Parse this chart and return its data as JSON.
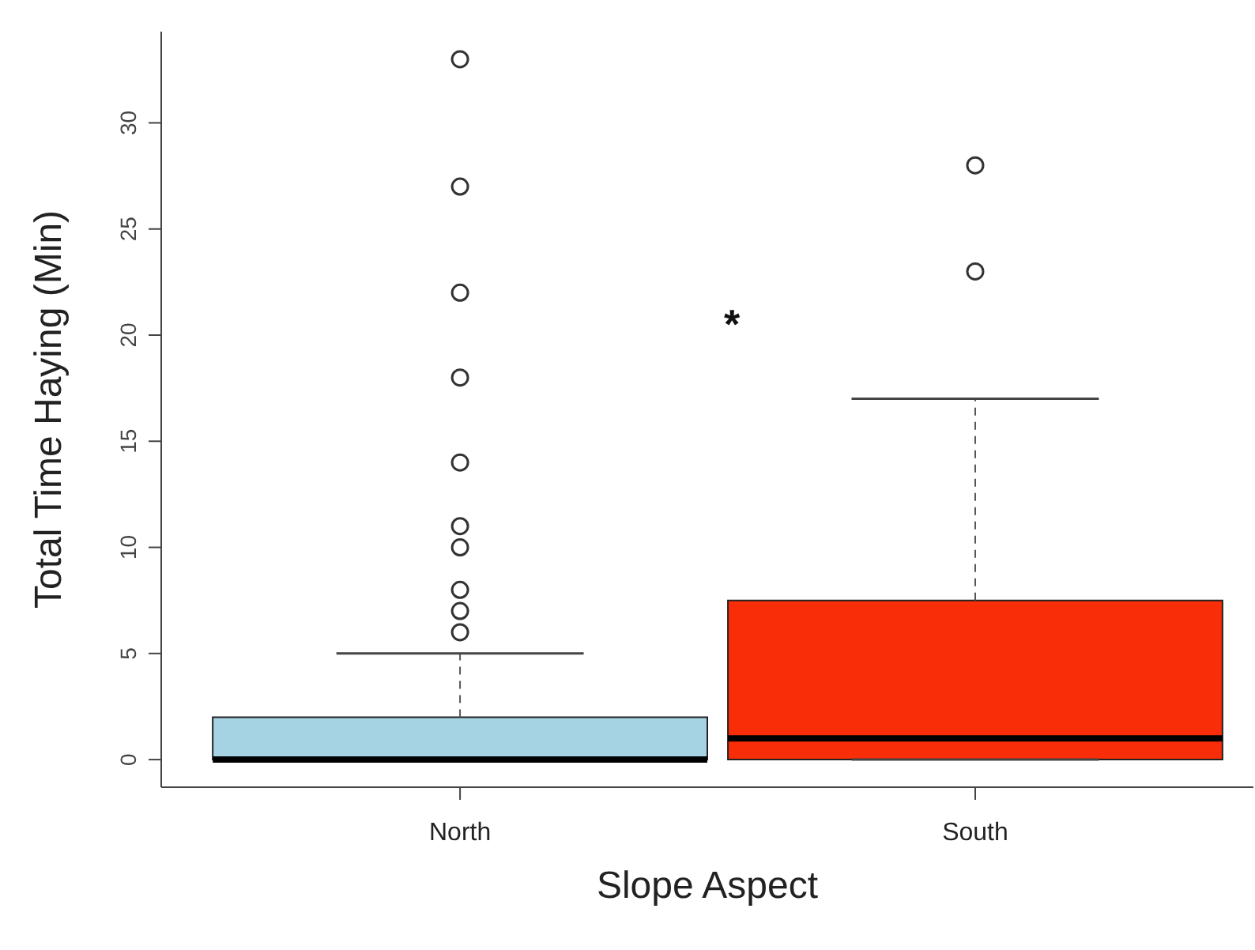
{
  "chart_data": {
    "type": "box",
    "xlabel": "Slope Aspect",
    "ylabel": "Total Time Haying (Min)",
    "categories": [
      "North",
      "South"
    ],
    "colors": [
      "#a6d3e4",
      "#f92d08"
    ],
    "boxes": [
      {
        "low": 0,
        "q1": 0,
        "median": 0,
        "q3": 2,
        "high": 5,
        "outliers": [
          6,
          7,
          8,
          10,
          11,
          14,
          18,
          22,
          27,
          33
        ]
      },
      {
        "low": 0,
        "q1": 0,
        "median": 1,
        "q3": 7.5,
        "high": 17,
        "outliers": [
          23,
          28
        ]
      }
    ],
    "ylim": [
      -1.3,
      34.3
    ],
    "yticks": [
      0,
      5,
      10,
      15,
      20,
      25,
      30
    ],
    "grid": false,
    "marker": "circle",
    "annotations": [
      "*"
    ]
  }
}
